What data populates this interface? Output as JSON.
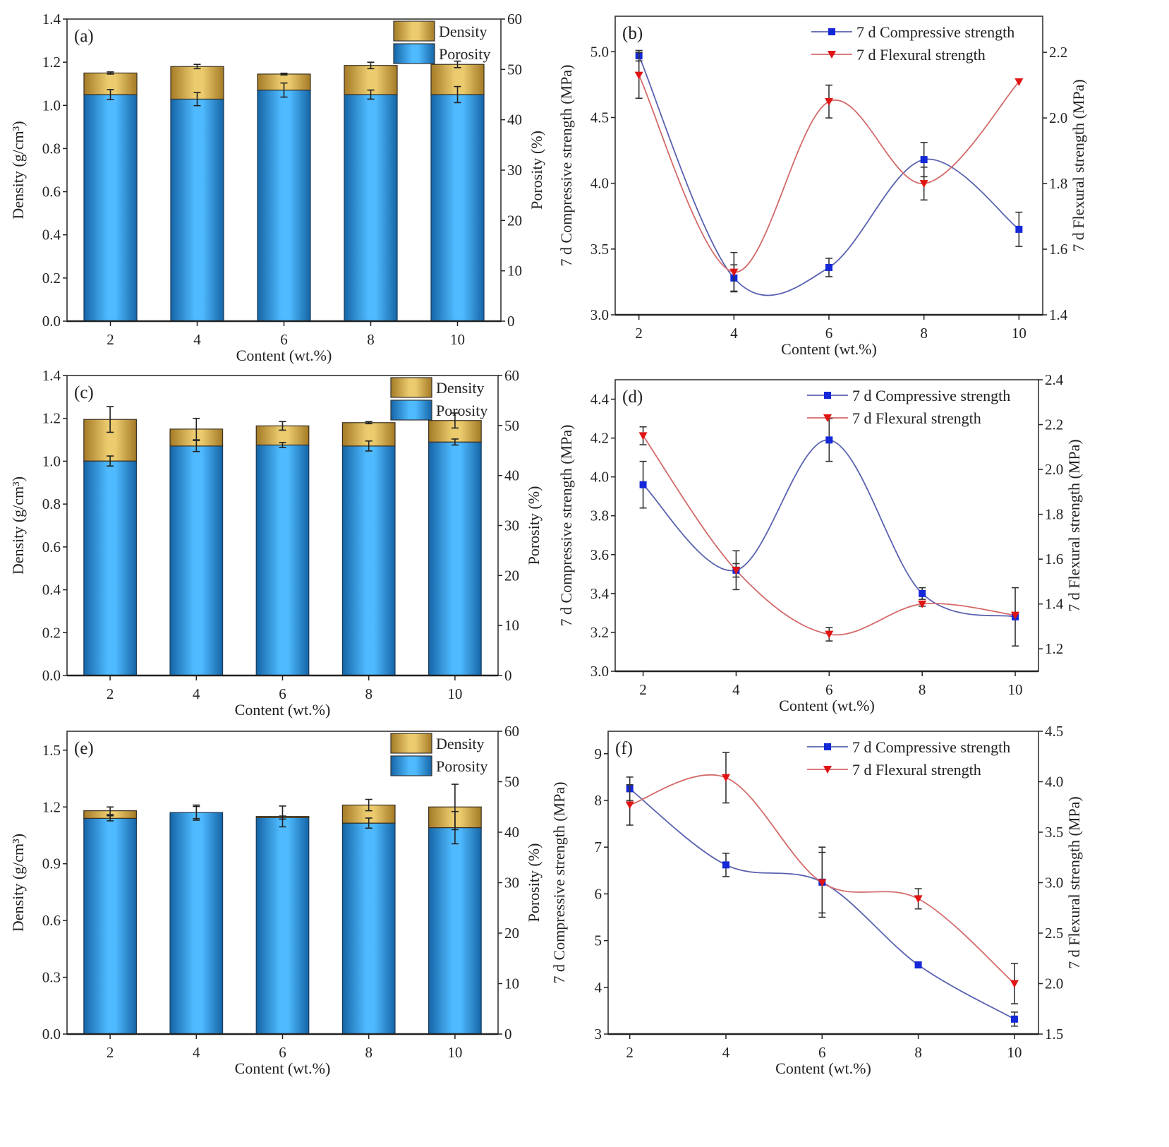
{
  "chart_data": [
    {
      "type": "bar",
      "panel": "(a)",
      "categories": [
        "2",
        "4",
        "6",
        "8",
        "10"
      ],
      "x": [
        2,
        4,
        6,
        8,
        10
      ],
      "xlabel": "Content (wt.%)",
      "ylabel": "Density (g/cm³)",
      "y2label": "Porosity (%)",
      "xlim": [
        1,
        11
      ],
      "ylim": [
        0,
        1.4
      ],
      "y2lim": [
        0,
        60
      ],
      "yticks": [
        "0.0",
        "0.2",
        "0.4",
        "0.6",
        "0.8",
        "1.0",
        "1.2",
        "1.4"
      ],
      "y2ticks": [
        "0",
        "10",
        "20",
        "30",
        "40",
        "50",
        "60"
      ],
      "legend": [
        "Density",
        "Porosity"
      ],
      "legend_position": "top-right",
      "series": [
        {
          "name": "Density",
          "axis": "left",
          "values": [
            1.15,
            1.18,
            1.145,
            1.185,
            1.19
          ],
          "errors": [
            0.005,
            0.01,
            0.004,
            0.015,
            0.015
          ]
        },
        {
          "name": "Porosity",
          "axis": "right",
          "values": [
            45.0,
            44.1,
            45.9,
            45.0,
            45.0
          ],
          "errors": [
            1.0,
            1.3,
            1.4,
            0.9,
            1.6
          ]
        }
      ]
    },
    {
      "type": "line",
      "panel": "(b)",
      "categories": [
        "2",
        "4",
        "6",
        "8",
        "10"
      ],
      "x": [
        2,
        4,
        6,
        8,
        10
      ],
      "xlabel": "Content (wt.%)",
      "ylabel": "7 d Compressive strength (MPa)",
      "y2label": "7 d Flexural strength (MPa)",
      "xlim": [
        1.5,
        10.5
      ],
      "ylim": [
        3.0,
        5.27
      ],
      "y2lim": [
        1.4,
        2.31
      ],
      "yticks": [
        "3.0",
        "3.5",
        "4.0",
        "4.5",
        "5.0"
      ],
      "y2ticks": [
        "1.4",
        "1.6",
        "1.8",
        "2.0",
        "2.2"
      ],
      "legend": [
        "7 d Compressive strength",
        "7 d Flexural strength"
      ],
      "legend_position": "top-right",
      "series": [
        {
          "name": "7 d Compressive strength",
          "axis": "left",
          "values": [
            4.97,
            3.28,
            3.36,
            4.18,
            3.65
          ],
          "errors": [
            0.04,
            0.1,
            0.07,
            0.13,
            0.13
          ]
        },
        {
          "name": "7 d Flexural strength",
          "axis": "right",
          "values": [
            2.13,
            1.53,
            2.05,
            1.8,
            2.11
          ],
          "errors": [
            0.07,
            0.06,
            0.05,
            0.05,
            0
          ]
        }
      ]
    },
    {
      "type": "bar",
      "panel": "(c)",
      "categories": [
        "2",
        "4",
        "6",
        "8",
        "10"
      ],
      "x": [
        2,
        4,
        6,
        8,
        10
      ],
      "xlabel": "Content (wt.%)",
      "ylabel": "Density (g/cm³)",
      "y2label": "Porosity (%)",
      "xlim": [
        1,
        11
      ],
      "ylim": [
        0,
        1.4
      ],
      "y2lim": [
        0,
        60
      ],
      "yticks": [
        "0.0",
        "0.2",
        "0.4",
        "0.6",
        "0.8",
        "1.0",
        "1.2",
        "1.4"
      ],
      "y2ticks": [
        "0",
        "10",
        "20",
        "30",
        "40",
        "50",
        "60"
      ],
      "legend": [
        "Density",
        "Porosity"
      ],
      "legend_position": "top-right",
      "series": [
        {
          "name": "Density",
          "axis": "left",
          "values": [
            1.195,
            1.15,
            1.165,
            1.18,
            1.19
          ],
          "errors": [
            0.06,
            0.05,
            0.02,
            0.005,
            0.035
          ]
        },
        {
          "name": "Porosity",
          "axis": "right",
          "values": [
            42.9,
            45.9,
            46.1,
            45.9,
            46.7
          ],
          "errors": [
            1.0,
            1.1,
            0.5,
            1.0,
            0.6
          ]
        }
      ]
    },
    {
      "type": "line",
      "panel": "(d)",
      "categories": [
        "2",
        "4",
        "6",
        "8",
        "10"
      ],
      "x": [
        2,
        4,
        6,
        8,
        10
      ],
      "xlabel": "Content (wt.%)",
      "ylabel": "7 d Compressive strength (MPa)",
      "y2label": "7 d Flexural strength (MPa)",
      "xlim": [
        1.4,
        10.5
      ],
      "ylim": [
        3.0,
        4.5
      ],
      "y2lim": [
        1.1,
        2.4
      ],
      "yticks": [
        "3.0",
        "3.2",
        "3.4",
        "3.6",
        "3.8",
        "4.0",
        "4.2",
        "4.4"
      ],
      "y2ticks": [
        "1.2",
        "1.4",
        "1.6",
        "1.8",
        "2.0",
        "2.2",
        "2.4"
      ],
      "legend": [
        "7 d Compressive strength",
        "7 d Flexural strength"
      ],
      "legend_position": "top-right",
      "series": [
        {
          "name": "7 d Compressive strength",
          "axis": "left",
          "values": [
            3.96,
            3.52,
            4.19,
            3.4,
            3.28
          ],
          "errors": [
            0.12,
            0.1,
            0.11,
            0.03,
            0.15
          ]
        },
        {
          "name": "7 d Flexural strength",
          "axis": "right",
          "values": [
            2.15,
            1.55,
            1.265,
            1.4,
            1.35
          ],
          "errors": [
            0.04,
            0.03,
            0.03,
            0.01,
            0
          ]
        }
      ]
    },
    {
      "type": "bar",
      "panel": "(e)",
      "categories": [
        "2",
        "4",
        "6",
        "8",
        "10"
      ],
      "x": [
        2,
        4,
        6,
        8,
        10
      ],
      "xlabel": "Content (wt.%)",
      "ylabel": "Density (g/cm³)",
      "y2label": "Porosity (%)",
      "xlim": [
        1,
        11
      ],
      "ylim": [
        0,
        1.6
      ],
      "y2lim": [
        0,
        60
      ],
      "yticks": [
        "0.0",
        "0.3",
        "0.6",
        "0.9",
        "1.2",
        "1.5"
      ],
      "y2ticks": [
        "0",
        "10",
        "20",
        "30",
        "40",
        "50",
        "60"
      ],
      "legend": [
        "Density",
        "Porosity"
      ],
      "legend_position": "top-right",
      "series": [
        {
          "name": "Density",
          "axis": "left",
          "values": [
            1.18,
            1.17,
            1.15,
            1.21,
            1.2
          ],
          "errors": [
            0.02,
            0.04,
            0.055,
            0.03,
            0.12
          ]
        },
        {
          "name": "Porosity",
          "axis": "right",
          "values": [
            42.75,
            43.9,
            42.9,
            41.8,
            40.9
          ],
          "errors": [
            0.5,
            1.2,
            0.3,
            1.0,
            3.2
          ]
        }
      ]
    },
    {
      "type": "line",
      "panel": "(f)",
      "categories": [
        "2",
        "4",
        "6",
        "8",
        "10"
      ],
      "x": [
        2,
        4,
        6,
        8,
        10
      ],
      "xlabel": "Content (wt.%)",
      "ylabel": "7 d Compressive strength (MPa)",
      "y2label": "7 d Flexural strength (MPa)",
      "xlim": [
        1.55,
        10.5
      ],
      "ylim": [
        3,
        9.48
      ],
      "y2lim": [
        1.5,
        4.5
      ],
      "yticks": [
        "3",
        "4",
        "5",
        "6",
        "7",
        "8",
        "9"
      ],
      "y2ticks": [
        "1.5",
        "2.0",
        "2.5",
        "3.0",
        "3.5",
        "4.0",
        "4.5"
      ],
      "legend": [
        "7 d Compressive strength",
        "7 d Flexural strength"
      ],
      "legend_position": "top-right",
      "series": [
        {
          "name": "7 d Compressive strength",
          "axis": "left",
          "values": [
            8.25,
            6.62,
            6.25,
            4.48,
            3.32
          ],
          "errors": [
            0.25,
            0.25,
            0.75,
            0.05,
            0.15
          ]
        },
        {
          "name": "7 d Flexural strength",
          "axis": "right",
          "values": [
            3.77,
            4.04,
            3.0,
            2.84,
            2.0
          ],
          "errors": [
            0.2,
            0.25,
            0.3,
            0.1,
            0.2
          ]
        }
      ]
    }
  ],
  "colors": {
    "porosity_dark": "#1565a6",
    "porosity_light": "#4fbaff",
    "density_dark": "#a47a26",
    "density_light": "#eccb6e",
    "compressive_line": "#5a62b0",
    "compressive_marker": "#1428d8",
    "flexural_line": "#d46a6a",
    "flexural_marker": "#e01414"
  }
}
